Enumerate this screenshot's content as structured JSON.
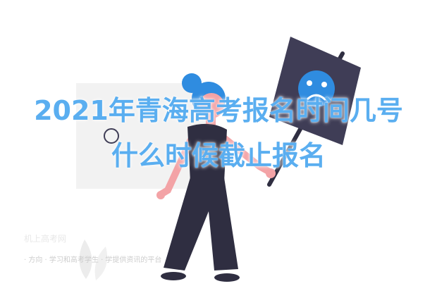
{
  "headline": {
    "line1": "2021年青海高考报名时间几号",
    "line2": "什么时候截止报名"
  },
  "watermark": {
    "title": "机上高考网",
    "tagline": "· 方向 · 学习和高考学生 · 学提供资讯的平台"
  },
  "colors": {
    "headline": "#5aaef0",
    "sign_board": "#3f3d56",
    "hair": "#2f8ce0",
    "skin": "#f3a3a6",
    "clothing": "#2f2e41"
  },
  "icons": {
    "sad_face": "sad-face-icon",
    "leaf": "leaf-icon"
  }
}
